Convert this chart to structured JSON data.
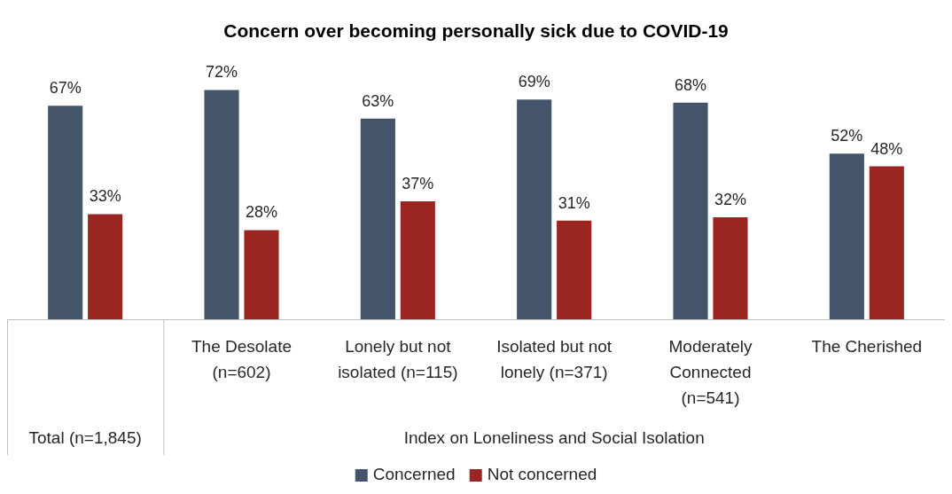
{
  "chart_data": {
    "type": "bar",
    "title": "Concern over becoming personally sick due to COVID-19",
    "xlabel": "Index on Loneliness and Social Isolation",
    "annotations": [
      "Total (n=1,845)"
    ],
    "categories": [
      null,
      "The Desolate (n=602)",
      "Lonely but not isolated (n=115)",
      "Isolated but not lonely (n=371)",
      "Moderately Connected (n=541)",
      "The Cherished"
    ],
    "series": [
      {
        "name": "Concerned",
        "color": "#44546a",
        "values": [
          67,
          72,
          63,
          69,
          68,
          52
        ],
        "value_labels": [
          "67%",
          "72%",
          "63%",
          "69%",
          "68%",
          "52%"
        ]
      },
      {
        "name": "Not concerned",
        "color": "#9b2621",
        "values": [
          33,
          28,
          37,
          31,
          32,
          48
        ],
        "value_labels": [
          "33%",
          "28%",
          "37%",
          "31%",
          "32%",
          "48%"
        ]
      }
    ],
    "legend": "bottom"
  }
}
